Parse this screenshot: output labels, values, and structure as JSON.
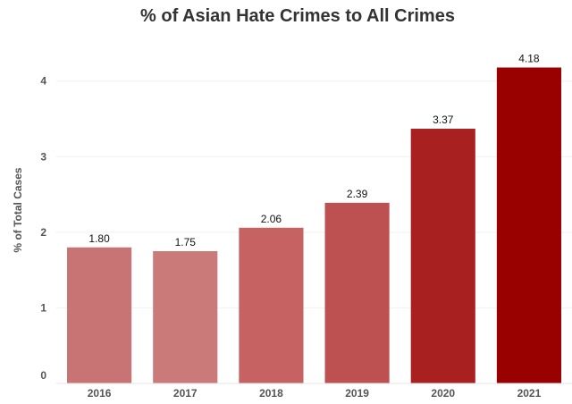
{
  "chart_data": {
    "type": "bar",
    "title": "% of Asian Hate Crimes to All Crimes",
    "xlabel": "",
    "ylabel": "% of Total Cases",
    "categories": [
      "2016",
      "2017",
      "2018",
      "2019",
      "2020",
      "2021"
    ],
    "values": [
      1.8,
      1.75,
      2.06,
      2.39,
      3.37,
      4.18
    ],
    "value_labels": [
      "1.80",
      "1.75",
      "2.06",
      "2.39",
      "3.37",
      "4.18"
    ],
    "ylim": [
      0,
      4.6
    ],
    "yticks": [
      0,
      1,
      2,
      3,
      4
    ],
    "ytick_labels": [
      "0",
      "1",
      "2",
      "3",
      "4"
    ],
    "grid": true,
    "legend": "none",
    "colors": [
      "#c97474",
      "#cb7a7a",
      "#c66262",
      "#bd5151",
      "#a82020",
      "#990000"
    ]
  }
}
